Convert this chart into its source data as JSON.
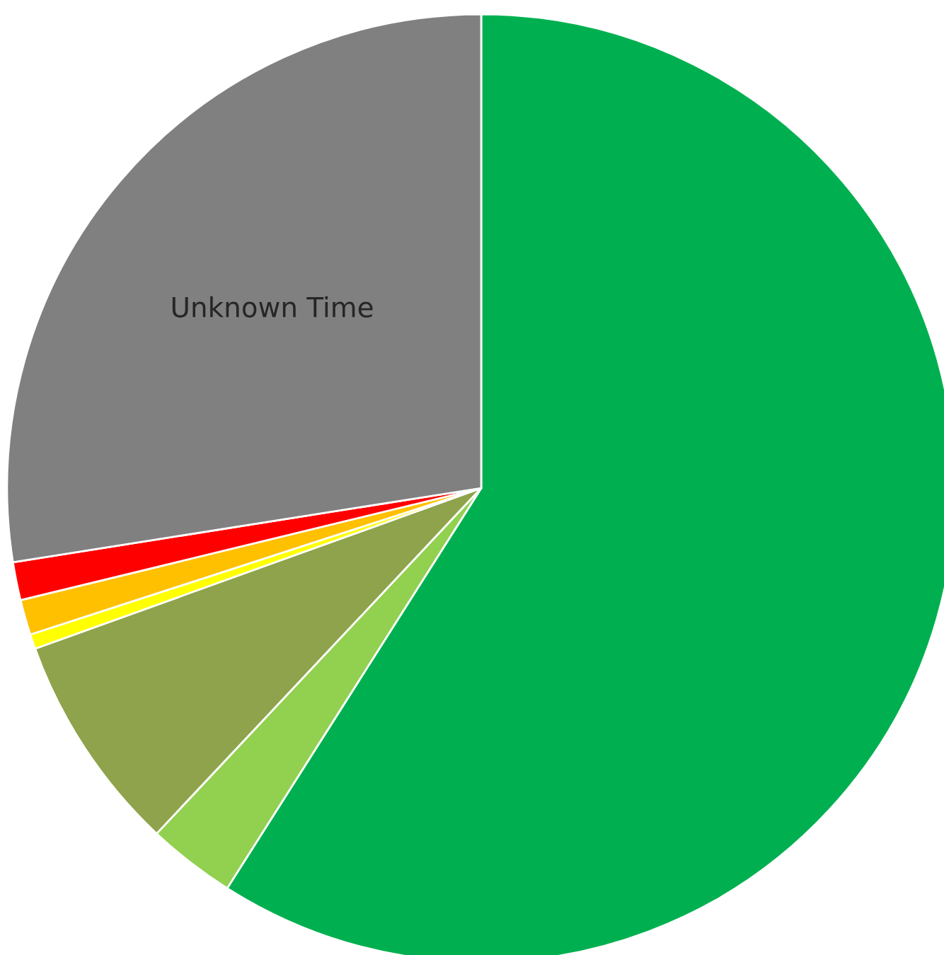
{
  "chart_data": {
    "type": "pie",
    "categories": [
      null,
      null,
      null,
      null,
      null,
      null,
      "Unknown Time"
    ],
    "values": [
      59,
      3,
      7.5,
      0.5,
      1.2,
      1.3,
      27.5
    ],
    "colors": [
      "#00b050",
      "#92d050",
      "#8ea34b",
      "#ffff00",
      "#ffc000",
      "#ff0000",
      "#808080"
    ],
    "legend": false
  }
}
